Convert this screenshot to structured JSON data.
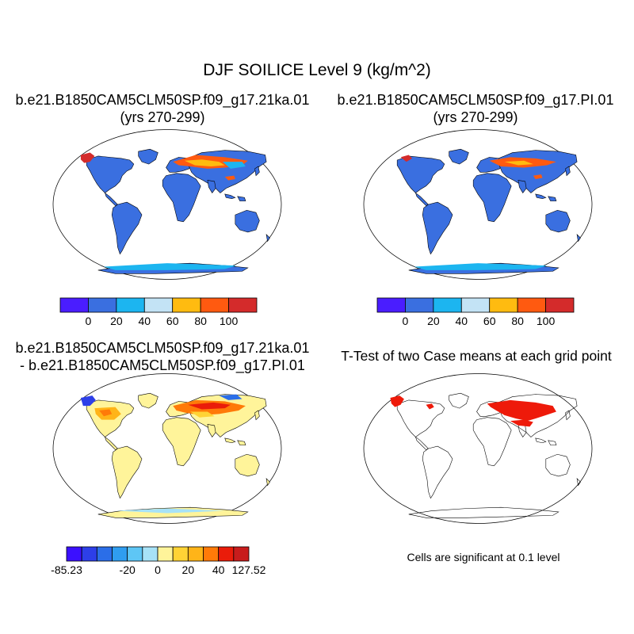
{
  "figure": {
    "title": "DJF SOILICE Level 9 (kg/m^2)",
    "panels": [
      {
        "title_line1": "b.e21.B1850CAM5CLM50SP.f09_g17.21ka.01",
        "title_line2": "(yrs 270-299)"
      },
      {
        "title_line1": "b.e21.B1850CAM5CLM50SP.f09_g17.PI.01",
        "title_line2": "(yrs 270-299)"
      },
      {
        "title_line1": "b.e21.B1850CAM5CLM50SP.f09_g17.21ka.01",
        "title_line2": "- b.e21.B1850CAM5CLM50SP.f09_g17.PI.01"
      },
      {
        "title_line1": "T-Test of two Case means at each grid point"
      }
    ],
    "significance_note": "Cells are significant at 0.1 level"
  },
  "colorbars": {
    "field": {
      "colors": [
        "#4a1dff",
        "#3a6fe0",
        "#1cb5f0",
        "#c3e3f5",
        "#ffbb10",
        "#ff5a10",
        "#d42b2b"
      ],
      "labels": [
        "0",
        "20",
        "40",
        "60",
        "80",
        "100"
      ]
    },
    "difference": {
      "colors": [
        "#3b10ff",
        "#2d3fe8",
        "#2b6ee8",
        "#2f9df0",
        "#5ec6f5",
        "#a7e2f7",
        "#fff49a",
        "#ffd335",
        "#ffb418",
        "#ff7a08",
        "#ea1c0a",
        "#c81c1c"
      ],
      "labels": [
        "-85.23",
        "-20",
        "0",
        "20",
        "40",
        "127.52"
      ]
    }
  },
  "colors": {
    "land_blue": "#3a6fe0",
    "land_yellow": "#fff49a",
    "significant_red": "#ee1a0a"
  }
}
